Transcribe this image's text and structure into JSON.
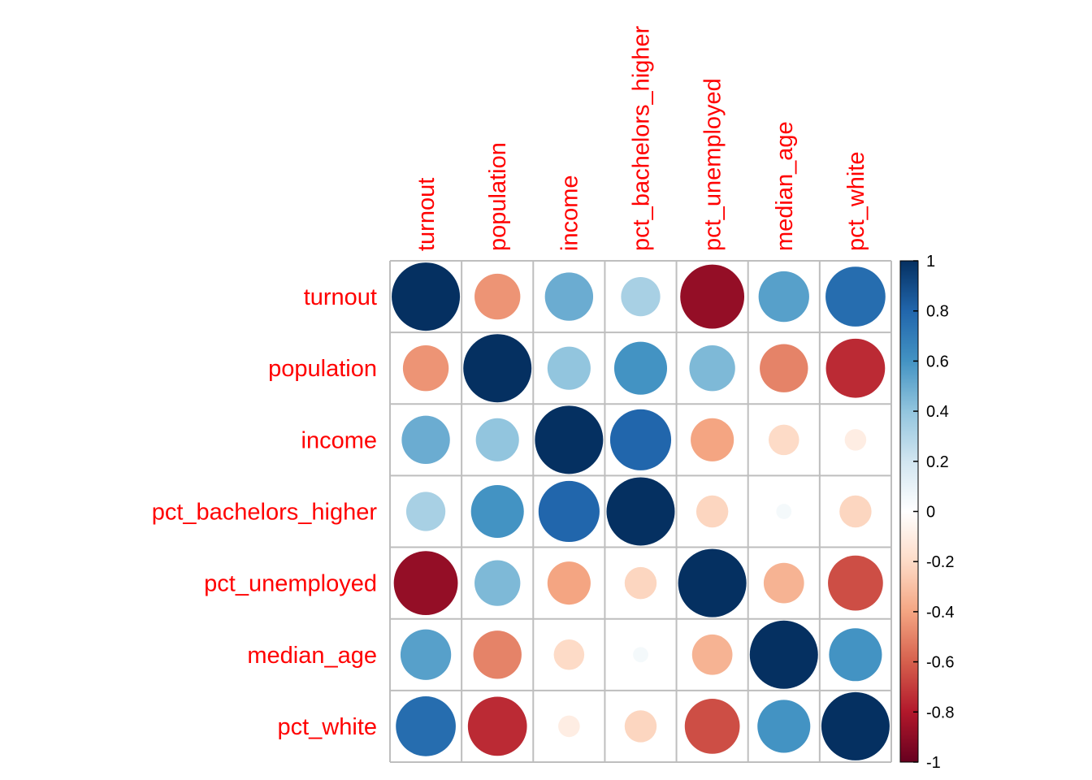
{
  "chart_data": {
    "type": "heatmap",
    "variables": [
      "turnout",
      "population",
      "income",
      "pct_bachelors_higher",
      "pct_unemployed",
      "median_age",
      "pct_white"
    ],
    "matrix": [
      [
        1.0,
        -0.45,
        0.5,
        0.33,
        -0.88,
        0.55,
        0.77
      ],
      [
        -0.45,
        1.0,
        0.4,
        0.6,
        0.45,
        -0.5,
        -0.75
      ],
      [
        0.5,
        0.4,
        1.0,
        0.8,
        -0.4,
        -0.2,
        -0.1
      ],
      [
        0.33,
        0.6,
        0.8,
        1.0,
        -0.22,
        0.05,
        -0.22
      ],
      [
        -0.88,
        0.45,
        -0.4,
        -0.22,
        1.0,
        -0.35,
        -0.65
      ],
      [
        0.55,
        -0.5,
        -0.2,
        0.05,
        -0.35,
        1.0,
        0.6
      ],
      [
        0.77,
        -0.75,
        -0.1,
        -0.22,
        -0.65,
        0.6,
        1.0
      ]
    ],
    "colorbar": {
      "range": [
        -1,
        1
      ],
      "ticks": [
        "1",
        "0.8",
        "0.6",
        "0.4",
        "0.2",
        "0",
        "-0.2",
        "-0.4",
        "-0.6",
        "-0.8",
        "-1"
      ]
    },
    "label_color": "#ff0000",
    "grid_color": "#bebebe",
    "palette": [
      "#67001f",
      "#b2182b",
      "#d6604d",
      "#f4a582",
      "#fddbc7",
      "#ffffff",
      "#d1e5f0",
      "#92c5de",
      "#4393c3",
      "#2166ac",
      "#053061"
    ]
  }
}
